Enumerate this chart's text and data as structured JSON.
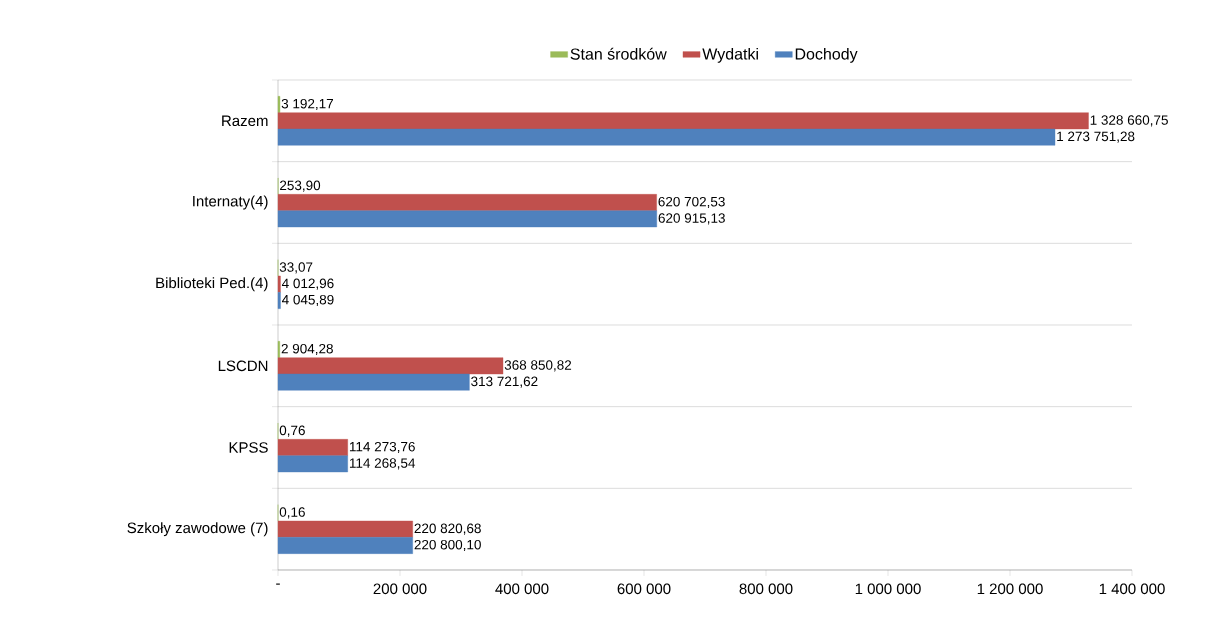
{
  "chart_data": {
    "type": "bar",
    "orientation": "horizontal",
    "categories": [
      "Razem",
      "Internaty(4)",
      "Biblioteki Ped.(4)",
      "LSCDN",
      "KPSS",
      "Szkoły zawodowe (7)"
    ],
    "series": [
      {
        "name": "Stan środków",
        "color": "#9bbb59",
        "values": [
          3192.17,
          253.9,
          33.07,
          2904.28,
          0.76,
          0.16
        ],
        "value_labels": [
          "3 192,17",
          "253,90",
          "33,07",
          "2 904,28",
          "0,76",
          "0,16"
        ]
      },
      {
        "name": "Wydatki",
        "color": "#c0504d",
        "values": [
          1328660.75,
          620702.53,
          4012.96,
          368850.82,
          114273.76,
          220820.68
        ],
        "value_labels": [
          "1 328 660,75",
          "620 702,53",
          "4 012,96",
          "368 850,82",
          "114 273,76",
          "220 820,68"
        ]
      },
      {
        "name": "Dochody",
        "color": "#4f81bd",
        "values": [
          1273751.28,
          620915.13,
          4045.89,
          313721.62,
          114268.54,
          220800.1
        ],
        "value_labels": [
          "1 273 751,28",
          "620 915,13",
          "4 045,89",
          "313 721,62",
          "114 268,54",
          "220 800,10"
        ]
      }
    ],
    "xlim": [
      0,
      1400000
    ],
    "xticks": [
      {
        "value": 0,
        "label": "-"
      },
      {
        "value": 200000,
        "label": "200 000"
      },
      {
        "value": 400000,
        "label": "400 000"
      },
      {
        "value": 600000,
        "label": "600 000"
      },
      {
        "value": 800000,
        "label": "800 000"
      },
      {
        "value": 1000000,
        "label": "1 000 000"
      },
      {
        "value": 1200000,
        "label": "1 200 000"
      },
      {
        "value": 1400000,
        "label": "1 400 000"
      }
    ],
    "grid": "y",
    "legend": "top"
  }
}
